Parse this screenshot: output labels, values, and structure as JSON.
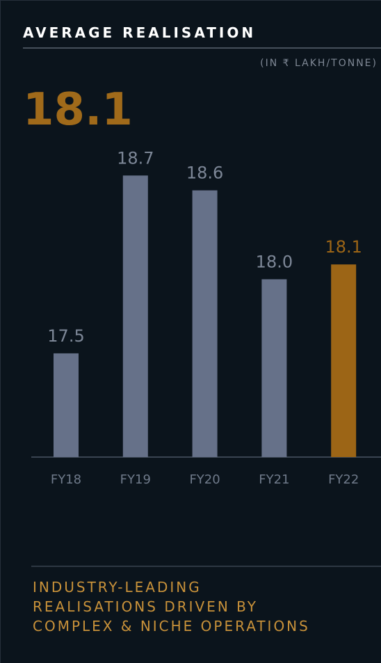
{
  "chart_data": {
    "type": "bar",
    "title": "AVERAGE REALISATION",
    "subtitle": "(IN ₹ LAKH/TONNE)",
    "highlight": "18.1",
    "categories": [
      "FY18",
      "FY19",
      "FY20",
      "FY21",
      "FY22"
    ],
    "values": [
      17.5,
      18.7,
      18.6,
      18.0,
      18.1
    ],
    "value_labels": [
      "17.5",
      "18.7",
      "18.6",
      "18.0",
      "18.1"
    ],
    "colors": [
      "#667189",
      "#667189",
      "#667189",
      "#667189",
      "#9c6516"
    ],
    "ylim": [
      16.8,
      19.0
    ],
    "footer": [
      "INDUSTRY-LEADING",
      "REALISATIONS DRIVEN BY",
      "COMPLEX & NICHE OPERATIONS"
    ]
  }
}
